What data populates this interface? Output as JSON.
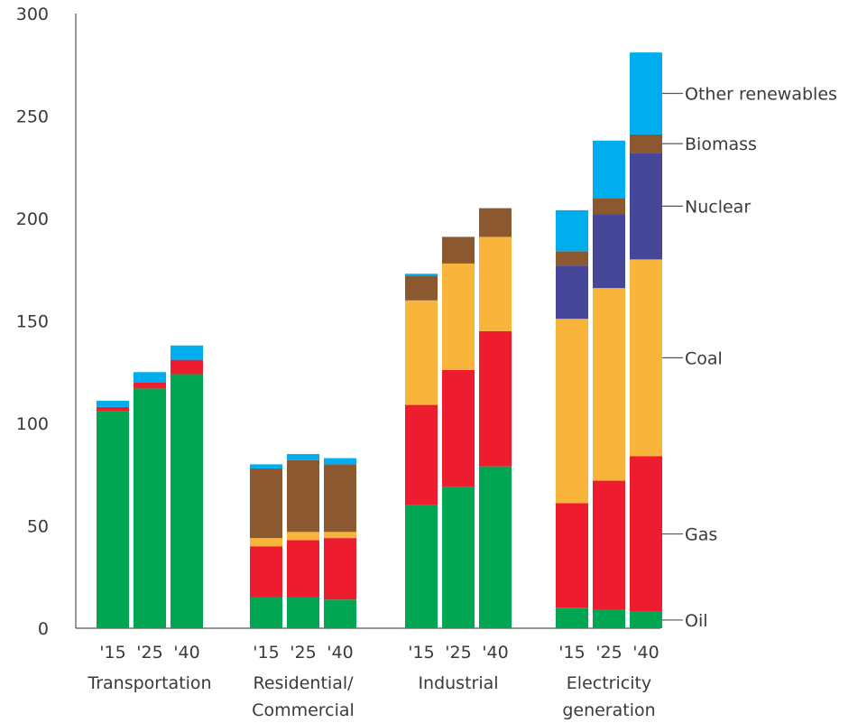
{
  "chart_data": {
    "type": "bar",
    "stacked": true,
    "ylim": [
      0,
      300
    ],
    "yticks": [
      "0",
      "50",
      "100",
      "150",
      "200",
      "250",
      "300"
    ],
    "groups": [
      {
        "label_lines": [
          "Transportation"
        ],
        "bars": [
          "'15",
          "'25",
          "'40"
        ]
      },
      {
        "label_lines": [
          "Residential/",
          "Commercial"
        ],
        "bars": [
          "'15",
          "'25",
          "'40"
        ]
      },
      {
        "label_lines": [
          "Industrial"
        ],
        "bars": [
          "'15",
          "'25",
          "'40"
        ]
      },
      {
        "label_lines": [
          "Electricity",
          "generation"
        ],
        "bars": [
          "'15",
          "'25",
          "'40"
        ]
      }
    ],
    "series": [
      {
        "name": "Oil",
        "color": "#00a651",
        "values": [
          [
            106,
            117,
            124
          ],
          [
            15,
            15,
            14
          ],
          [
            60,
            69,
            79
          ],
          [
            10,
            9,
            8
          ]
        ]
      },
      {
        "name": "Gas",
        "color": "#ed1c2e",
        "values": [
          [
            2,
            3,
            7
          ],
          [
            25,
            28,
            30
          ],
          [
            49,
            57,
            66
          ],
          [
            51,
            63,
            76
          ]
        ]
      },
      {
        "name": "Coal",
        "color": "#f9b43c",
        "values": [
          [
            0,
            0,
            0
          ],
          [
            4,
            4,
            3
          ],
          [
            51,
            52,
            46
          ],
          [
            90,
            94,
            96
          ]
        ]
      },
      {
        "name": "Nuclear",
        "color": "#46479a",
        "values": [
          [
            0,
            0,
            0
          ],
          [
            0,
            0,
            0
          ],
          [
            0,
            0,
            0
          ],
          [
            26,
            36,
            52
          ]
        ]
      },
      {
        "name": "Biomass",
        "color": "#8c5830",
        "values": [
          [
            0,
            0,
            0
          ],
          [
            34,
            35,
            33
          ],
          [
            12,
            13,
            14
          ],
          [
            7,
            8,
            9
          ]
        ]
      },
      {
        "name": "Other renewables",
        "color": "#00aeef",
        "values": [
          [
            3,
            5,
            7
          ],
          [
            2,
            3,
            3
          ],
          [
            1,
            0,
            0
          ],
          [
            20,
            28,
            40
          ]
        ]
      }
    ],
    "legend_position": "right, aligned to last bar",
    "grid": false
  }
}
